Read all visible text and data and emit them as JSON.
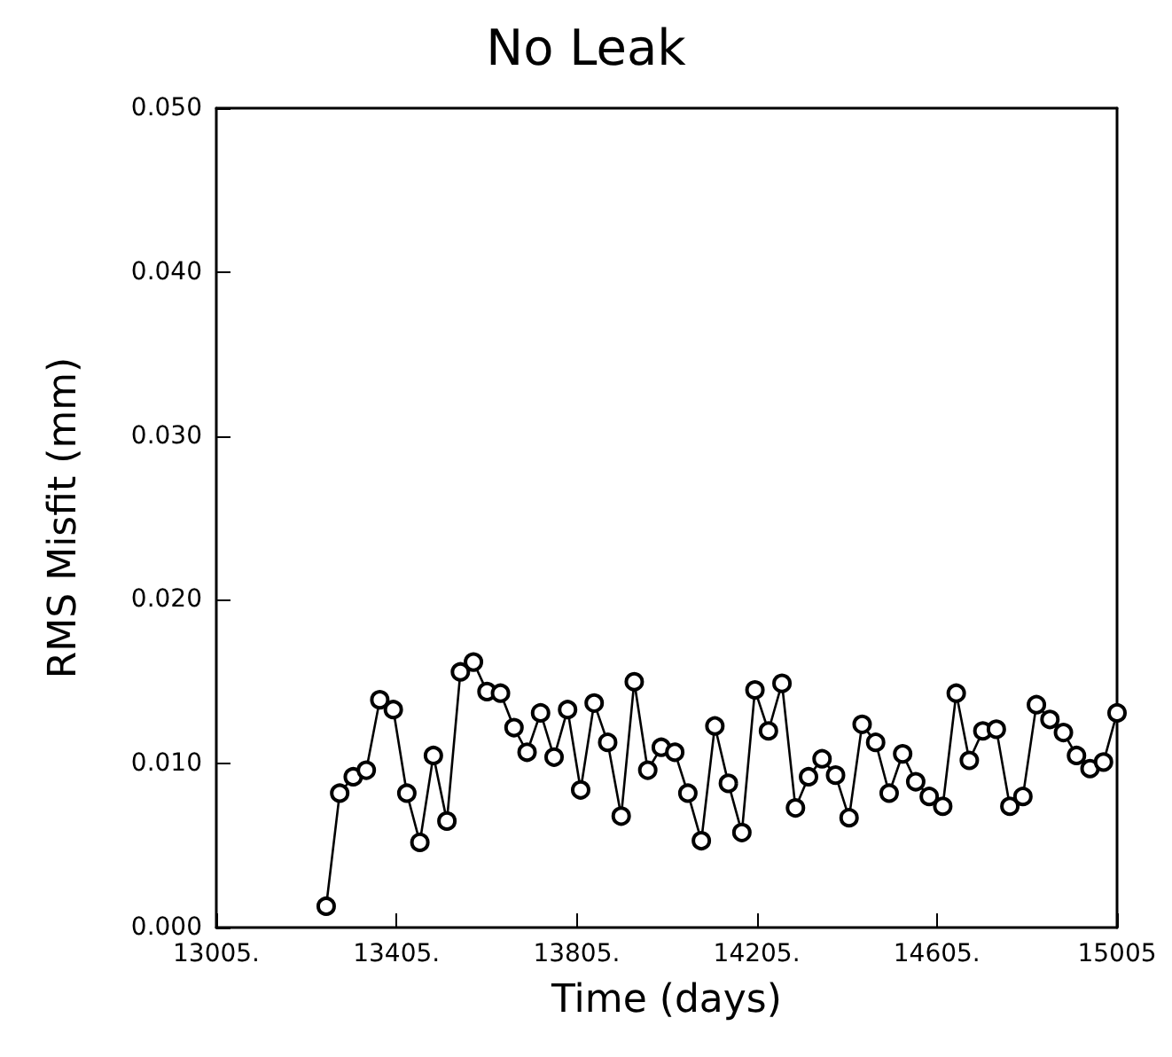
{
  "chart_data": {
    "type": "line",
    "title": "No Leak",
    "xlabel": "Time (days)",
    "ylabel": "RMS Misfit (mm)",
    "x": [
      13249,
      13279,
      13309,
      13338,
      13368,
      13398,
      13428,
      13457,
      13487,
      13517,
      13547,
      13576,
      13606,
      13636,
      13666,
      13695,
      13725,
      13755,
      13785,
      13814,
      13844,
      13874,
      13904,
      13933,
      13963,
      13993,
      14023,
      14052,
      14082,
      14112,
      14142,
      14172,
      14201,
      14231,
      14261,
      14291,
      14320,
      14350,
      14380,
      14410,
      14439,
      14469,
      14499,
      14529,
      14558,
      14588,
      14618,
      14648,
      14677,
      14707,
      14737,
      14767,
      14796,
      14826,
      14856,
      14886,
      14915,
      14945,
      14975,
      15005
    ],
    "series": [
      {
        "color": "#000000",
        "values": [
          0.0013,
          0.0082,
          0.0092,
          0.0096,
          0.0139,
          0.0133,
          0.0082,
          0.0052,
          0.0105,
          0.0065,
          0.0156,
          0.0162,
          0.0144,
          0.0143,
          0.0122,
          0.0107,
          0.0131,
          0.0104,
          0.0133,
          0.0084,
          0.0137,
          0.0113,
          0.0068,
          0.015,
          0.0096,
          0.011,
          0.0107,
          0.0082,
          0.0053,
          0.0123,
          0.0088,
          0.0058,
          0.0145,
          0.012,
          0.0149,
          0.0073,
          0.0092,
          0.0103,
          0.0093,
          0.0067,
          0.0124,
          0.0113,
          0.0082,
          0.0106,
          0.0089,
          0.008,
          0.0074,
          0.0143,
          0.0102,
          0.012,
          0.0121,
          0.0074,
          0.008,
          0.0136,
          0.0127,
          0.0119,
          0.0105,
          0.0097,
          0.0101,
          0.0131
        ]
      }
    ],
    "xlim": [
      13005,
      15005
    ],
    "xticks": [
      {
        "value": 13005,
        "label": "13005."
      },
      {
        "value": 13405,
        "label": "13405."
      },
      {
        "value": 13805,
        "label": "13805."
      },
      {
        "value": 14205,
        "label": "14205."
      },
      {
        "value": 14605,
        "label": "14605."
      },
      {
        "value": 15005,
        "label": "15005"
      }
    ],
    "ylim": [
      0,
      0.05
    ],
    "yticks": [
      {
        "value": 0,
        "label": "0.000"
      },
      {
        "value": 0.01,
        "label": "0.010"
      },
      {
        "value": 0.02,
        "label": "0.020"
      },
      {
        "value": 0.03,
        "label": "0.030"
      },
      {
        "value": 0.04,
        "label": "0.040"
      },
      {
        "value": 0.05,
        "label": "0.050"
      }
    ],
    "grid": false,
    "marker": "circle",
    "line_style": "solid"
  }
}
